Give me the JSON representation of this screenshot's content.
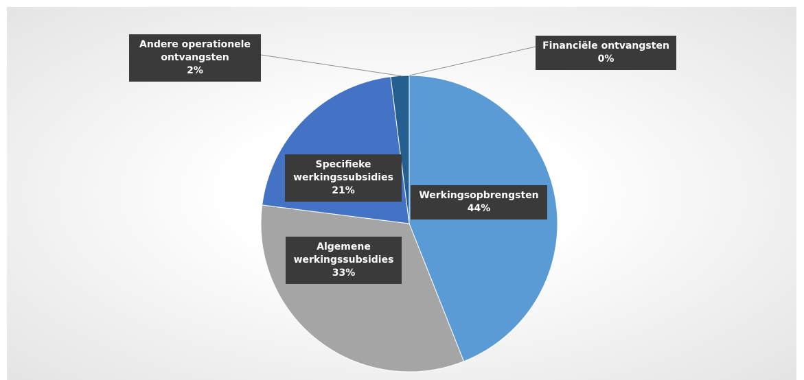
{
  "chart_data": {
    "type": "pie",
    "categories": [
      "Werkingsopbrengsten",
      "Algemene werkingssubsidies",
      "Specifieke werkingssubsidies",
      "Andere operationele ontvangsten",
      "Financiële ontvangsten"
    ],
    "values": [
      44,
      33,
      21,
      2,
      0
    ],
    "value_labels": [
      "44%",
      "33%",
      "21%",
      "2%",
      "0%"
    ],
    "colors": [
      "#5b9bd5",
      "#a5a5a5",
      "#4472c4",
      "#255e91",
      "#264478"
    ]
  }
}
